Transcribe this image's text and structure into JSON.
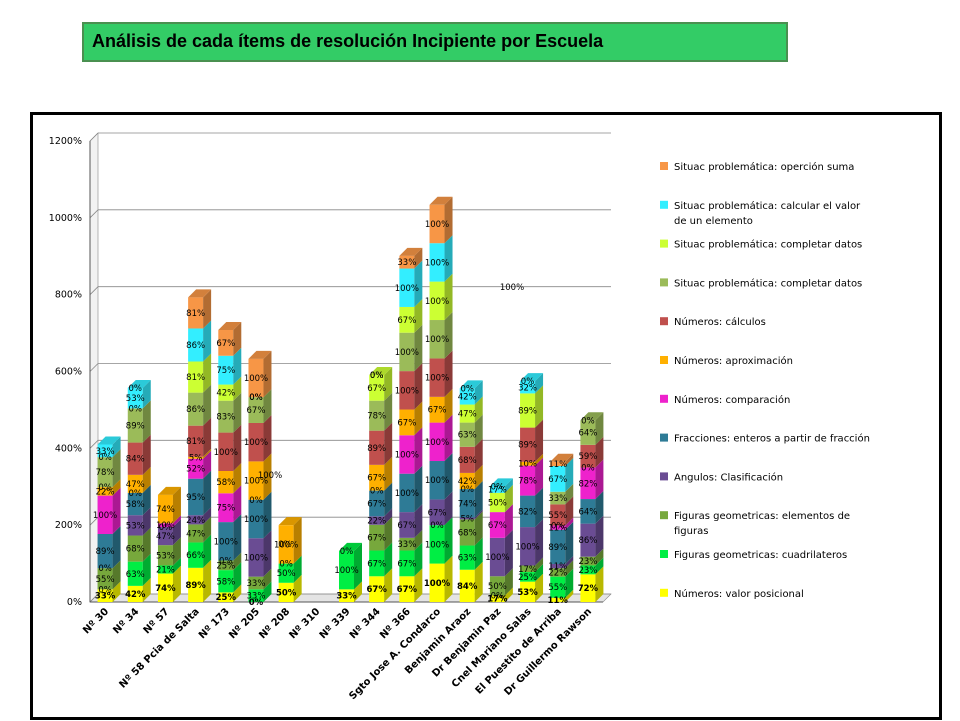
{
  "title": "Análisis de cada ítems de resolución Incipiente por  Escuela",
  "chart_data": {
    "type": "bar",
    "stacked": true,
    "ylim": [
      0,
      1200
    ],
    "yticks": [
      "0%",
      "200%",
      "400%",
      "600%",
      "800%",
      "1000%",
      "1200%"
    ],
    "grid": true,
    "legend_position": "right",
    "categories": [
      "Nº 30",
      "Nº 34",
      "Nº 57",
      "Nº 58 Pcia de Salta",
      "Nº 173",
      "Nº 205",
      "Nº 208",
      "Nº 310",
      "Nº 339",
      "Nº 344",
      "Nº 366",
      "Sgto Jose A. Condarco",
      "Benjamin Araoz",
      "Dr Benjamin Paz",
      "Cnel Mariano Salas",
      "El Puestito de Arriba",
      "Dr Guillermo Rawson"
    ],
    "series": [
      {
        "name": "Números: valor posicional",
        "color": "#ffff00",
        "values": [
          33,
          42,
          74,
          89,
          25,
          0,
          50,
          0,
          33,
          67,
          67,
          100,
          84,
          17,
          53,
          11,
          72
        ],
        "labels": [
          "33%",
          "42%",
          "74%",
          "89%",
          "25%",
          "0%",
          "50%",
          "",
          "33%",
          "67%",
          "67%",
          "100%",
          "84%",
          "17%",
          "53%",
          "11%",
          "72%"
        ]
      },
      {
        "name": "Figuras geometricas: cuadrilateros",
        "color": "#00ee44",
        "values": [
          0,
          63,
          21,
          66,
          58,
          33,
          50,
          0,
          100,
          67,
          67,
          100,
          63,
          0,
          25,
          55,
          23
        ],
        "labels": [
          "0%",
          "63%",
          "21%",
          "66%",
          "58%",
          "33%",
          "50%",
          "",
          "100%",
          "67%",
          "67%",
          "100%",
          "63%",
          "0%",
          "25%",
          "55%",
          "23%"
        ]
      },
      {
        "name": "Figuras geometricas: elementos de figuras",
        "color": "#77a83c",
        "values": [
          55,
          68,
          53,
          47,
          25,
          33,
          0,
          0,
          0,
          67,
          33,
          0,
          68,
          50,
          17,
          22,
          23
        ],
        "labels": [
          "55%",
          "68%",
          "53%",
          "47%",
          "25%",
          "33%",
          "0%",
          "",
          "0%",
          "67%",
          "33%",
          "0%",
          "68%",
          "50%",
          "17%",
          "22%",
          "23%"
        ]
      },
      {
        "name": "Angulos: Clasificación",
        "color": "#6a4c93",
        "values": [
          0,
          53,
          47,
          24,
          0,
          100,
          0,
          0,
          0,
          22,
          67,
          67,
          5,
          100,
          100,
          11,
          86
        ],
        "labels": [
          "0%",
          "53%",
          "47%",
          "24%",
          "0%",
          "100%",
          "",
          "",
          "",
          "22%",
          "67%",
          "67%",
          "5%",
          "100%",
          "100%",
          "11%",
          "86%"
        ]
      },
      {
        "name": "Fracciones: enteros a partir de fracción",
        "color": "#2e7b96",
        "values": [
          89,
          58,
          0,
          95,
          100,
          100,
          0,
          0,
          0,
          67,
          100,
          100,
          74,
          0,
          82,
          89,
          64
        ],
        "labels": [
          "89%",
          "58%",
          "0%",
          "95%",
          "100%",
          "100%",
          "",
          "",
          "",
          "67%",
          "100%",
          "100%",
          "74%",
          "",
          "82%",
          "89%",
          "64%"
        ]
      },
      {
        "name": "Números: comparación",
        "color": "#ee22cc",
        "values": [
          100,
          0,
          10,
          52,
          75,
          0,
          0,
          0,
          0,
          0,
          100,
          100,
          0,
          67,
          78,
          11,
          82
        ],
        "labels": [
          "100%",
          "0%",
          "10%",
          "52%",
          "75%",
          "0%",
          "",
          "",
          "",
          "0%",
          "100%",
          "100%",
          "0%",
          "67%",
          "78%",
          "11%",
          "82%"
        ]
      },
      {
        "name": "Números: aproximación",
        "color": "#ffb000",
        "values": [
          22,
          47,
          74,
          5,
          58,
          100,
          100,
          0,
          0,
          67,
          67,
          67,
          42,
          0,
          10,
          0,
          0
        ],
        "labels": [
          "22%",
          "47%",
          "74%",
          "5%",
          "58%",
          "100%",
          "100%",
          "",
          "",
          "67%",
          "67%",
          "67%",
          "42%",
          "",
          "10%",
          "0%",
          "0%"
        ]
      },
      {
        "name": "Números: cálculos",
        "color": "#c0504d",
        "values": [
          0,
          84,
          0,
          81,
          100,
          100,
          0,
          0,
          0,
          89,
          100,
          100,
          68,
          0,
          89,
          55,
          59
        ],
        "labels": [
          "0%",
          "84%",
          "",
          "81%",
          "100%",
          "100%",
          "",
          "",
          "",
          "89%",
          "100%",
          "100%",
          "68%",
          "",
          "89%",
          "55%",
          "59%"
        ]
      },
      {
        "name": "Situac problemática: completar datos",
        "color": "#9bbb59",
        "values": [
          78,
          89,
          0,
          86,
          83,
          67,
          0,
          0,
          0,
          78,
          100,
          100,
          63,
          0,
          0,
          33,
          64
        ],
        "labels": [
          "78%",
          "89%",
          "",
          "86%",
          "83%",
          "67%",
          "",
          "",
          "",
          "78%",
          "100%",
          "100%",
          "63%",
          "",
          "",
          "33%",
          "64%"
        ]
      },
      {
        "name": "Situac problemática: completar datos",
        "color": "#ccff33",
        "values": [
          0,
          0,
          0,
          81,
          42,
          0,
          0,
          0,
          0,
          67,
          67,
          100,
          47,
          50,
          89,
          0,
          0
        ],
        "labels": [
          "0%",
          "0%",
          "",
          "81%",
          "42%",
          "0%",
          "",
          "",
          "",
          "67%",
          "67%",
          "100%",
          "47%",
          "50%",
          "89%",
          "",
          ""
        ]
      },
      {
        "name": "Situac problemática: calcular el valor de un elemento",
        "color": "#33eeff",
        "values": [
          33,
          53,
          0,
          86,
          75,
          0,
          0,
          0,
          0,
          0,
          100,
          100,
          42,
          17,
          32,
          67,
          0
        ],
        "labels": [
          "33%",
          "53%",
          "",
          "86%",
          "75%",
          "0%",
          "",
          "",
          "",
          "0%",
          "100%",
          "100%",
          "42%",
          "17%",
          "32%",
          "67%",
          ""
        ]
      },
      {
        "name": "Situac problemática: operción suma",
        "color": "#f79646",
        "values": [
          0,
          0,
          0,
          81,
          67,
          100,
          0,
          0,
          0,
          0,
          33,
          100,
          0,
          0,
          0,
          11,
          0
        ],
        "labels": [
          "",
          "0%",
          "",
          "81%",
          "67%",
          "100%",
          "",
          "",
          "",
          "0%",
          "33%",
          "100%",
          "0%",
          "0%",
          "0%",
          "11%",
          "0%"
        ]
      }
    ],
    "annotations": [
      "100%",
      "100%",
      "0%"
    ]
  }
}
